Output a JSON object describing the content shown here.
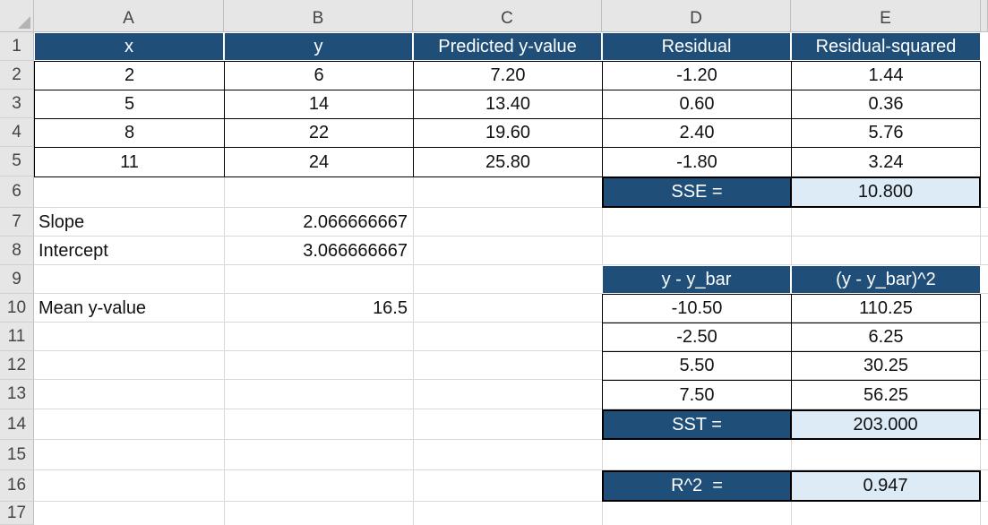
{
  "columns": [
    "A",
    "B",
    "C",
    "D",
    "E"
  ],
  "rows": [
    "1",
    "2",
    "3",
    "4",
    "5",
    "6",
    "7",
    "8",
    "9",
    "10",
    "11",
    "12",
    "13",
    "14",
    "15",
    "16",
    "17"
  ],
  "table1": {
    "headers": [
      "x",
      "y",
      "Predicted y-value",
      "Residual",
      "Residual-squared"
    ],
    "rows": [
      [
        "2",
        "6",
        "7.20",
        "-1.20",
        "1.44"
      ],
      [
        "5",
        "14",
        "13.40",
        "0.60",
        "0.36"
      ],
      [
        "8",
        "22",
        "19.60",
        "2.40",
        "5.76"
      ],
      [
        "11",
        "24",
        "25.80",
        "-1.80",
        "3.24"
      ]
    ]
  },
  "sse": {
    "label": "SSE =",
    "value": "10.800"
  },
  "stats": {
    "slope_label": "Slope",
    "slope_value": "2.066666667",
    "intercept_label": "Intercept",
    "intercept_value": "3.066666667",
    "mean_label": "Mean y-value",
    "mean_value": "16.5"
  },
  "table2": {
    "headers": [
      "y - y_bar",
      "(y - y_bar)^2"
    ],
    "rows": [
      [
        "-10.50",
        "110.25"
      ],
      [
        "-2.50",
        "6.25"
      ],
      [
        "5.50",
        "30.25"
      ],
      [
        "7.50",
        "56.25"
      ]
    ]
  },
  "sst": {
    "label": "SST =",
    "value": "203.000"
  },
  "r2": {
    "label": "R^2  =",
    "value": "0.947"
  },
  "colors": {
    "header_navy": "#1f4e79",
    "result_fill": "#ddebf7",
    "chrome_gray": "#e6e6e6"
  }
}
